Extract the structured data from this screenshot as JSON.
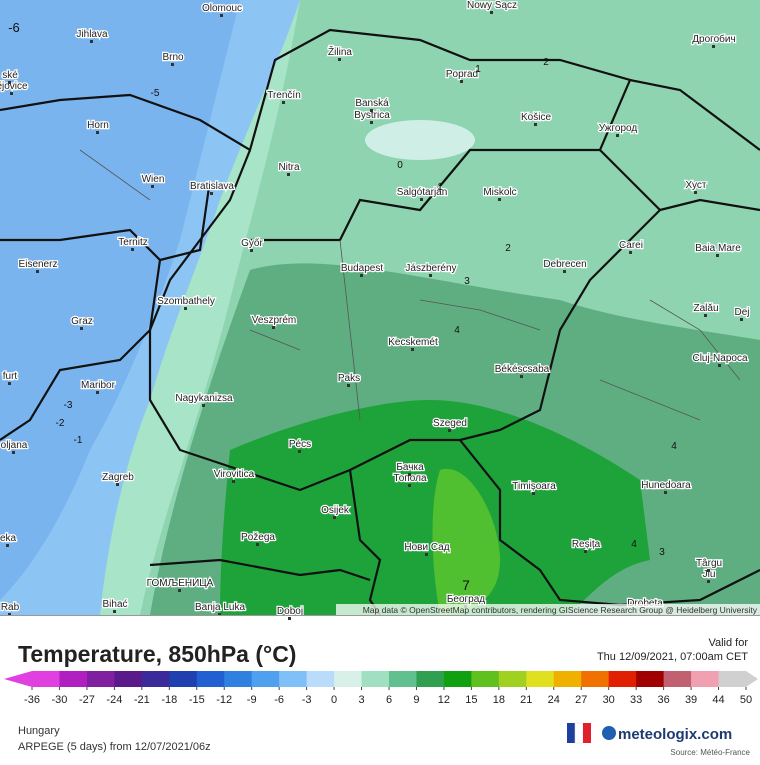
{
  "map": {
    "cities": [
      "Olomouc",
      "Nowy Sącz",
      "Jihlava",
      "Brno",
      "Žilina",
      "Poprad",
      "Дрогобич",
      "Trenčín",
      "Banská",
      "Bystrica",
      "Košice",
      "Ужгород",
      "Horn",
      "Wien",
      "Bratislava",
      "Nitra",
      "Salgótarján",
      "Miskolc",
      "Хуст",
      "Ternitz",
      "Győr",
      "Carei",
      "Baia Mare",
      "Eisenerz",
      "Budapest",
      "Jászberény",
      "Debrecen",
      "Szombathely",
      "Zalău",
      "Graz",
      "Veszprém",
      "Dej",
      "Kecskemét",
      "Cluj-Napoca",
      "Békéscsaba",
      "Paks",
      "Maribor",
      "Nagykanizsa",
      "Szeged",
      "Pécs",
      "Бачка",
      "Топола",
      "Zagreb",
      "Virovitica",
      "Timișoara",
      "Hunedoara",
      "Osijek",
      "Нови Сад",
      "Požega",
      "Reșița",
      "Târgu",
      "Jiu",
      "ГОМЉЕНИЦА",
      "Београд",
      "Bihać",
      "Banja Luka",
      "Doboj",
      "Drobeta",
      "ské",
      "ějovice",
      "furt",
      "oljana",
      "eka",
      "Rab"
    ],
    "contour_labels": [
      -6,
      -5,
      0,
      1,
      2,
      2,
      3,
      4,
      -3,
      -2,
      -1,
      4,
      4,
      3,
      7,
      1
    ],
    "attribution": "Map data © OpenStreetMap contributors, rendering GIScience Research Group @ Heidelberg University"
  },
  "legend": {
    "title": "Temperature, 850hPa (°C)",
    "ticks": [
      -36,
      -30,
      -27,
      -24,
      -21,
      -18,
      -15,
      -12,
      -9,
      -6,
      -3,
      0,
      3,
      6,
      9,
      12,
      15,
      18,
      21,
      24,
      27,
      30,
      33,
      36,
      39,
      44,
      50
    ],
    "colors": [
      "#e040e0",
      "#b020c0",
      "#8020a0",
      "#5a1a8a",
      "#3a2a9a",
      "#2040b0",
      "#2060d0",
      "#3080e0",
      "#50a0f0",
      "#80c0f8",
      "#b8dcfa",
      "#d8f0e8",
      "#a0e0c0",
      "#60c090",
      "#30a050",
      "#10a010",
      "#60c020",
      "#a0d020",
      "#e0e020",
      "#f0b000",
      "#f07000",
      "#e02000",
      "#a00000",
      "#c06070",
      "#f0a0b0",
      "#d0d0d0"
    ]
  },
  "valid": {
    "label": "Valid for",
    "time": "Thu 12/09/2021, 07:00am CET"
  },
  "footer": {
    "region": "Hungary",
    "model": "ARPEGE (5 days) from 12/07/2021/06z",
    "brand": "meteologix.com",
    "source": "Source: Météo-France"
  }
}
